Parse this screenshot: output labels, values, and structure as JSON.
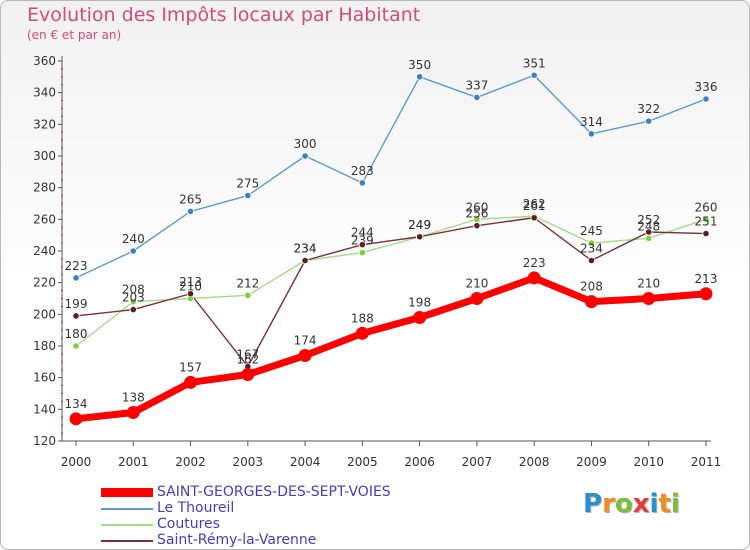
{
  "header": {
    "title": "Evolution des Impôts locaux par Habitant",
    "subtitle": "(en € et par an)"
  },
  "logo": {
    "text": "Proxiti",
    "colors": [
      "#2b8fd0",
      "#f08a22",
      "#7bbf3a",
      "#e33d3d",
      "#2b8fd0",
      "#f08a22",
      "#7bbf3a"
    ]
  },
  "chart_data": {
    "type": "line",
    "title": "Evolution des Impôts locaux par Habitant",
    "subtitle": "(en € et par an)",
    "xlabel": "",
    "ylabel": "",
    "categories": [
      "2000",
      "2001",
      "2002",
      "2003",
      "2004",
      "2005",
      "2006",
      "2007",
      "2008",
      "2009",
      "2010",
      "2011"
    ],
    "ylim": [
      120,
      360
    ],
    "yticks": [
      120,
      140,
      160,
      180,
      200,
      220,
      240,
      260,
      280,
      300,
      320,
      340,
      360
    ],
    "grid": false,
    "legend_position": "bottom-left",
    "series": [
      {
        "name": "Le Thoureil",
        "color": "#5b9bd0",
        "marker": "#3b80c0",
        "values": [
          223,
          240,
          265,
          275,
          300,
          283,
          350,
          337,
          351,
          314,
          322,
          336
        ],
        "labels": [
          "223",
          "240",
          "265",
          "275",
          "300",
          "283",
          "350",
          "337",
          "351",
          "314",
          "322",
          "336"
        ]
      },
      {
        "name": "Coutures",
        "color": "#a3dc8a",
        "marker": "#7bd136",
        "values": [
          180,
          208,
          210,
          212,
          234,
          239,
          249,
          260,
          262,
          245,
          248,
          260
        ],
        "labels": [
          "180",
          "208",
          "210",
          "212",
          "234",
          "239",
          "249",
          "260",
          "262",
          "245",
          "248",
          "260"
        ]
      },
      {
        "name": "Saint-Rémy-la-Varenne",
        "color": "#7a3038",
        "marker": "#5a1e24",
        "values": [
          199,
          203,
          213,
          167,
          234,
          244,
          249,
          256,
          261,
          234,
          252,
          251
        ],
        "labels": [
          "199",
          "203",
          "213",
          "167",
          "234",
          "244",
          "249",
          "256",
          "261",
          "234",
          "252",
          "251"
        ]
      },
      {
        "name": "SAINT-GEORGES-DES-SEPT-VOIES",
        "color": "#ff0000",
        "marker": "#ff0000",
        "values": [
          134,
          138,
          157,
          162,
          174,
          188,
          198,
          210,
          223,
          208,
          210,
          213
        ],
        "labels": [
          "134",
          "138",
          "157",
          "162",
          "174",
          "188",
          "198",
          "210",
          "223",
          "208",
          "210",
          "213"
        ]
      }
    ]
  }
}
